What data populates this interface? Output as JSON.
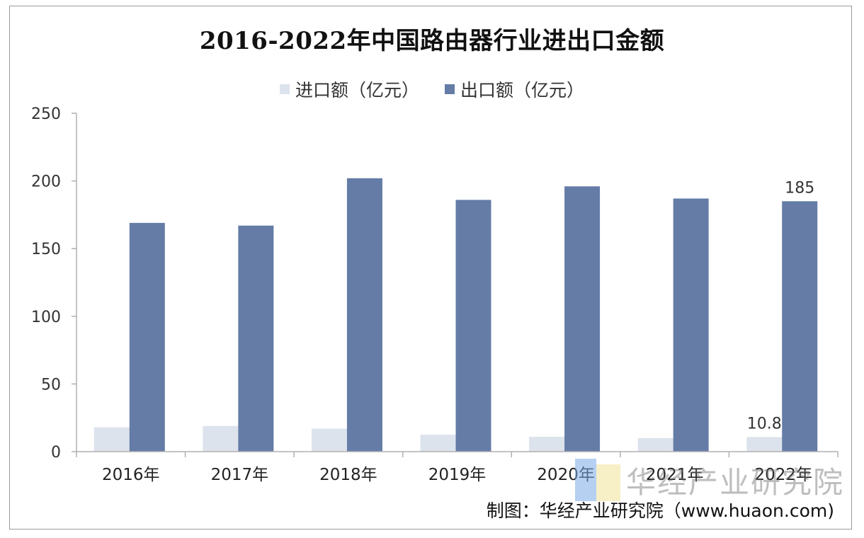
{
  "chart_data": {
    "type": "bar",
    "title": "2016-2022年中国路由器行业进出口金额",
    "categories": [
      "2016年",
      "2017年",
      "2018年",
      "2019年",
      "2020年",
      "2021年",
      "2022年"
    ],
    "series": [
      {
        "name": "进口额（亿元）",
        "color": "#dde3ec",
        "values": [
          18,
          19,
          17,
          12.5,
          11,
          10,
          10.8
        ],
        "data_labels": [
          null,
          null,
          null,
          null,
          null,
          null,
          "10.8"
        ]
      },
      {
        "name": "出口额（亿元）",
        "color": "#647ca6",
        "values": [
          169,
          167,
          202,
          186,
          196,
          187,
          185
        ],
        "data_labels": [
          null,
          null,
          null,
          null,
          null,
          null,
          "185"
        ]
      }
    ],
    "ylim": [
      0,
      250
    ],
    "yticks": [
      0,
      50,
      100,
      150,
      200,
      250
    ],
    "xlabel": "",
    "ylabel": "",
    "grid": false,
    "legend_position": "top"
  },
  "watermark": {
    "text": "华经产业研究院"
  },
  "credit": "制图：华经产业研究院（www.huaon.com)"
}
